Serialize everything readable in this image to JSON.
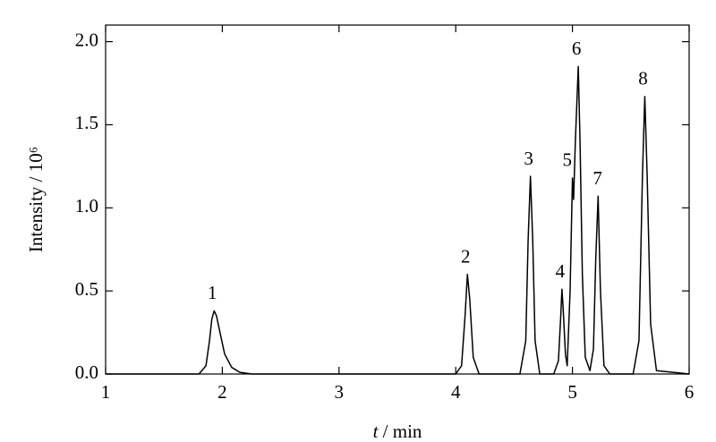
{
  "chart_data": {
    "type": "line",
    "y_label": "Intensity / 10⁶",
    "x_label_var": "t",
    "x_label_unit": " / min",
    "color": "#000000",
    "x": [
      1,
      1.8,
      1.86,
      1.89,
      1.91,
      1.93,
      1.95,
      1.98,
      2.02,
      2.08,
      2.15,
      2.25,
      4.0,
      4.05,
      4.08,
      4.1,
      4.12,
      4.15,
      4.2,
      4.55,
      4.6,
      4.62,
      4.64,
      4.66,
      4.68,
      4.72,
      4.84,
      4.88,
      4.9,
      4.91,
      4.92,
      4.94,
      4.955,
      4.98,
      5.0,
      5.01,
      5.025,
      5.05,
      5.065,
      5.085,
      5.11,
      5.15,
      5.18,
      5.2,
      5.22,
      5.24,
      5.27,
      5.32,
      5.52,
      5.57,
      5.6,
      5.62,
      5.64,
      5.67,
      5.72,
      6
    ],
    "values": [
      0,
      0,
      0.05,
      0.2,
      0.33,
      0.38,
      0.35,
      0.25,
      0.12,
      0.04,
      0.01,
      0,
      0,
      0.05,
      0.35,
      0.6,
      0.45,
      0.1,
      0,
      0,
      0.2,
      0.8,
      1.19,
      0.8,
      0.2,
      0,
      0,
      0.08,
      0.35,
      0.51,
      0.4,
      0.12,
      0.05,
      0.5,
      1.18,
      1.05,
      1.4,
      1.85,
      1.4,
      0.6,
      0.1,
      0.02,
      0.15,
      0.7,
      1.07,
      0.5,
      0.05,
      0,
      0,
      0.2,
      1.2,
      1.67,
      1.2,
      0.3,
      0.02,
      0
    ],
    "annotations": [
      {
        "text": "1",
        "x": 1.93,
        "y": 0.38
      },
      {
        "text": "2",
        "x": 4.1,
        "y": 0.6
      },
      {
        "text": "3",
        "x": 4.64,
        "y": 1.19
      },
      {
        "text": "4",
        "x": 4.91,
        "y": 0.51
      },
      {
        "text": "5",
        "x": 4.97,
        "y": 1.18
      },
      {
        "text": "6",
        "x": 5.05,
        "y": 1.85
      },
      {
        "text": "7",
        "x": 5.23,
        "y": 1.07
      },
      {
        "text": "8",
        "x": 5.62,
        "y": 1.67
      }
    ],
    "xlim": [
      1,
      6
    ],
    "xticks": [
      1,
      2,
      3,
      4,
      5,
      6
    ],
    "ylim": [
      0,
      2.1
    ],
    "yticks": [
      {
        "value": 0,
        "label": "0.0"
      },
      {
        "value": 0.5,
        "label": "0.5"
      },
      {
        "value": 1,
        "label": "1.0"
      },
      {
        "value": 1.5,
        "label": "1.5"
      },
      {
        "value": 2,
        "label": "2.0"
      }
    ]
  }
}
